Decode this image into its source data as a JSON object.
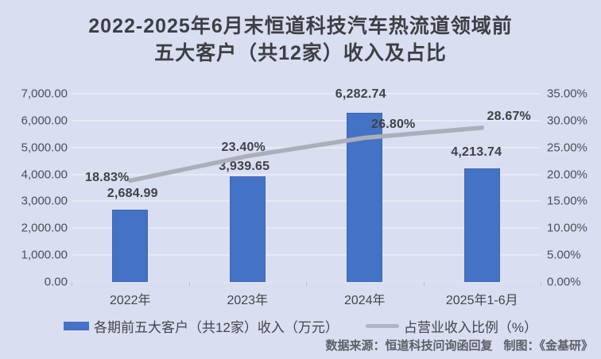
{
  "title": {
    "full": "2022-2025年6月末恒道科技汽车热流道领域前五大客户（共12家）收入及占比",
    "line1": "2022-2025年6月末恒道科技汽车热流道领域前",
    "line2": "五大客户（共12家）收入及占比"
  },
  "chart_data": {
    "type": "bar+line",
    "categories": [
      "2022年",
      "2023年",
      "2024年",
      "2025年1-6月"
    ],
    "series": [
      {
        "name": "各期前五大客户（共12家）收入（万元）",
        "type": "bar",
        "axis": "left",
        "values": [
          2684.99,
          3939.65,
          6282.74,
          4213.74
        ],
        "labels": [
          "2,684.99",
          "3,939.65",
          "6,282.74",
          "4,213.74"
        ],
        "color": "#4472C4"
      },
      {
        "name": "占营业收入比例（%）",
        "type": "line",
        "axis": "right",
        "values": [
          18.83,
          23.4,
          26.8,
          28.67
        ],
        "labels": [
          "18.83%",
          "23.40%",
          "26.80%",
          "28.67%"
        ],
        "color": "#AAAFBB"
      }
    ],
    "left_axis": {
      "min": 0,
      "max": 7000,
      "step": 1000,
      "ticks": [
        "7,000.00",
        "6,000.00",
        "5,000.00",
        "4,000.00",
        "3,000.00",
        "2,000.00",
        "1,000.00",
        "0.00"
      ]
    },
    "right_axis": {
      "min": 0,
      "max": 35,
      "step": 5,
      "ticks": [
        "35.00%",
        "30.00%",
        "25.00%",
        "20.00%",
        "15.00%",
        "10.00%",
        "5.00%",
        "0.00%"
      ]
    },
    "grid": true,
    "legend_position": "bottom"
  },
  "colors": {
    "background": "#D9DEF1",
    "bar": "#4472C4",
    "line": "#AAAFBB",
    "gridline": "#E6EAF6",
    "text": "#42454b"
  },
  "footer": {
    "source": "数据来源：恒道科技问询函回复",
    "credit": "制图：《金基研》"
  }
}
